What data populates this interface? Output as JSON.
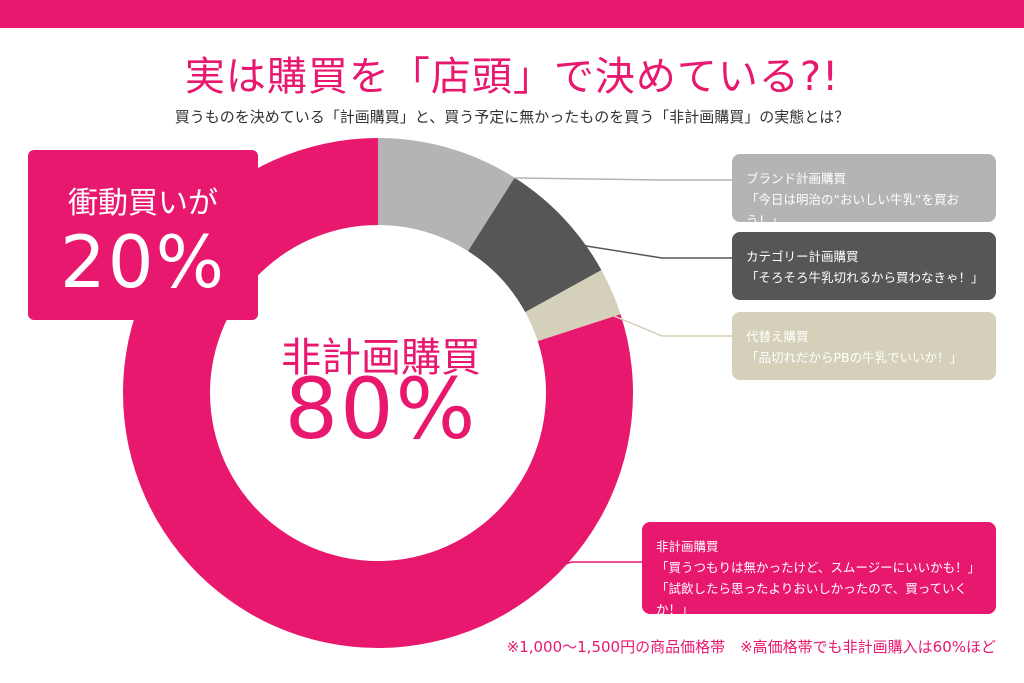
{
  "title": "実は購買を「店頭」で決めている?!",
  "subtitle": "買うものを決めている「計画購買」と、買う予定に無かったものを買う「非計画購買」の実態とは？",
  "impulse": {
    "label": "衝動買いが",
    "value": "20%"
  },
  "center": {
    "label": "非計画購買",
    "value": "80%"
  },
  "callouts": [
    {
      "title": "ブランド計画購買",
      "quote": "「今日は明治の“おいしい牛乳”を買おう！」"
    },
    {
      "title": "カテゴリー計画購買",
      "quote": "「そろそろ牛乳切れるから買わなきゃ！」"
    },
    {
      "title": "代替え購買",
      "quote": "「品切れだからPBの牛乳でいいか！」"
    },
    {
      "title": "非計画購買",
      "quote1": "「買うつもりは無かったけど、スムージーにいいかも！」",
      "quote2": "「試飲したら思ったよりおいしかったので、買っていくか！」"
    }
  ],
  "footnote": "※1,000〜1,500円の商品価格帯　※高価格帯でも非計画購入は60%ほど",
  "colors": {
    "accent": "#e8186f",
    "brand": "#b4b4b4",
    "category": "#555655",
    "substitute": "#d5d0b9"
  },
  "chart_data": {
    "type": "pie",
    "donut": true,
    "title": "",
    "slices": [
      {
        "label": "ブランド計画購買",
        "value": 9,
        "color": "#b4b4b4"
      },
      {
        "label": "カテゴリー計画購買",
        "value": 8,
        "color": "#555655"
      },
      {
        "label": "代替え購買",
        "value": 3,
        "color": "#d5d0b9"
      },
      {
        "label": "非計画購買",
        "value": 80,
        "color": "#e8186f"
      }
    ]
  }
}
